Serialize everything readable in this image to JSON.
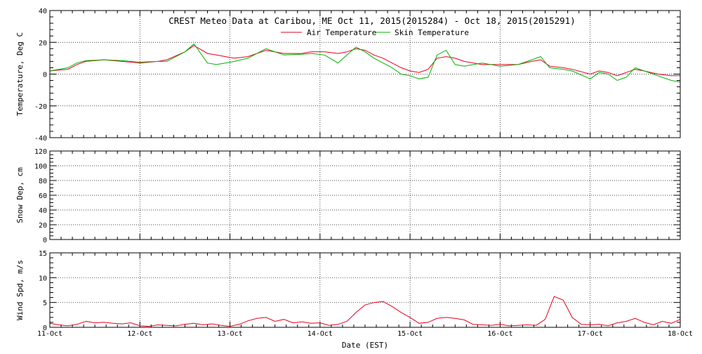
{
  "title": "CREST Meteo Data at Caribou, ME   Oct 11, 2015(2015284) - Oct 18, 2015(2015291)",
  "xlabel": "Date (EST)",
  "x_ticks": [
    "11-Oct",
    "12-Oct",
    "13-Oct",
    "14-Oct",
    "15-Oct",
    "16-Oct",
    "17-Oct",
    "18-Oct"
  ],
  "colors": {
    "air": "#e8001c",
    "skin": "#00b300",
    "wind": "#e8001c"
  },
  "chart_data": [
    {
      "type": "line",
      "ylabel": "Temperature, Deg C",
      "ylim": [
        -40,
        40
      ],
      "yticks": [
        -40,
        -20,
        0,
        20,
        40
      ],
      "xlim": [
        0,
        7
      ],
      "grid": true,
      "legend": "top-center",
      "series": [
        {
          "name": "Air Temperature",
          "color": "#e8001c",
          "x": [
            0,
            0.1,
            0.2,
            0.3,
            0.4,
            0.6,
            0.8,
            1.0,
            1.2,
            1.3,
            1.5,
            1.6,
            1.75,
            1.85,
            1.95,
            2.05,
            2.2,
            2.4,
            2.6,
            2.8,
            2.9,
            3.05,
            3.2,
            3.3,
            3.4,
            3.5,
            3.6,
            3.7,
            3.8,
            3.9,
            4.0,
            4.1,
            4.2,
            4.3,
            4.4,
            4.5,
            4.6,
            4.8,
            5.0,
            5.2,
            5.35,
            5.45,
            5.55,
            5.7,
            5.8,
            6.0,
            6.1,
            6.2,
            6.3,
            6.4,
            6.5,
            6.6,
            6.75,
            6.9,
            7.0
          ],
          "y": [
            2,
            2.5,
            3,
            6,
            8,
            9,
            8,
            7,
            8,
            9,
            14,
            18,
            13,
            12,
            11,
            10,
            11,
            15,
            13,
            13,
            14,
            14,
            13,
            14,
            16,
            15,
            12,
            10,
            7,
            4,
            2,
            1,
            3,
            10,
            11,
            10,
            8,
            6,
            6,
            6,
            8,
            9,
            5,
            4,
            3,
            0,
            2,
            1,
            -1,
            1,
            3,
            2,
            0,
            -1,
            -1
          ]
        },
        {
          "name": "Skin Temperature",
          "color": "#00b300",
          "x": [
            0,
            0.1,
            0.2,
            0.3,
            0.4,
            0.6,
            0.8,
            1.0,
            1.2,
            1.3,
            1.5,
            1.6,
            1.75,
            1.85,
            1.95,
            2.05,
            2.2,
            2.4,
            2.6,
            2.8,
            2.9,
            3.05,
            3.2,
            3.3,
            3.4,
            3.5,
            3.6,
            3.7,
            3.8,
            3.9,
            4.0,
            4.1,
            4.2,
            4.3,
            4.4,
            4.5,
            4.6,
            4.8,
            5.0,
            5.2,
            5.35,
            5.45,
            5.55,
            5.7,
            5.8,
            6.0,
            6.1,
            6.2,
            6.3,
            6.4,
            6.5,
            6.6,
            6.75,
            6.9,
            7.0
          ],
          "y": [
            2,
            3,
            4,
            7,
            8.5,
            9,
            8.5,
            7.5,
            8,
            8,
            14,
            19,
            7,
            6,
            7,
            8,
            10,
            16,
            12,
            12.5,
            13,
            12,
            7,
            12,
            17,
            14,
            10,
            7,
            4,
            0,
            -1,
            -3,
            -2,
            12,
            15,
            6,
            5,
            7,
            5,
            6,
            9,
            11,
            4,
            3,
            2,
            -3,
            1,
            0,
            -4,
            -2,
            4,
            2,
            -1,
            -4,
            -5
          ]
        }
      ]
    },
    {
      "type": "line",
      "ylabel": "Snow Dep, cm",
      "ylim": [
        0,
        120
      ],
      "yticks": [
        0,
        20,
        40,
        60,
        80,
        100,
        120
      ],
      "xlim": [
        0,
        7
      ],
      "grid": true,
      "series": []
    },
    {
      "type": "line",
      "ylabel": "Wind Spd, m/s",
      "ylim": [
        0,
        15
      ],
      "yticks": [
        0,
        5,
        10,
        15
      ],
      "xlim": [
        0,
        7
      ],
      "grid": true,
      "series": [
        {
          "color": "#e8001c",
          "x": [
            0,
            0.1,
            0.2,
            0.3,
            0.4,
            0.5,
            0.6,
            0.7,
            0.8,
            0.9,
            1.0,
            1.1,
            1.2,
            1.3,
            1.4,
            1.5,
            1.6,
            1.7,
            1.8,
            1.9,
            2.0,
            2.1,
            2.2,
            2.3,
            2.4,
            2.5,
            2.6,
            2.7,
            2.8,
            2.9,
            3.0,
            3.1,
            3.2,
            3.3,
            3.4,
            3.5,
            3.6,
            3.7,
            3.8,
            3.9,
            4.0,
            4.1,
            4.2,
            4.3,
            4.4,
            4.5,
            4.6,
            4.7,
            4.8,
            4.9,
            5.0,
            5.1,
            5.2,
            5.3,
            5.4,
            5.5,
            5.6,
            5.7,
            5.8,
            5.9,
            6.0,
            6.1,
            6.2,
            6.3,
            6.4,
            6.5,
            6.6,
            6.7,
            6.8,
            6.9,
            7.0
          ],
          "y": [
            0.8,
            0.5,
            0.3,
            0.6,
            1.2,
            0.9,
            1.0,
            0.8,
            0.7,
            0.9,
            0.3,
            0.2,
            0.5,
            0.4,
            0.3,
            0.6,
            0.8,
            0.5,
            0.7,
            0.4,
            0.2,
            0.6,
            1.3,
            1.8,
            2.0,
            1.2,
            1.6,
            0.9,
            1.1,
            0.8,
            0.9,
            0.4,
            0.6,
            1.2,
            3.0,
            4.5,
            5.0,
            5.2,
            4.2,
            3.0,
            2.0,
            0.8,
            1.0,
            1.8,
            2.0,
            1.8,
            1.5,
            0.6,
            0.5,
            0.4,
            0.6,
            0.3,
            0.4,
            0.5,
            0.4,
            1.6,
            6.2,
            5.5,
            2.0,
            0.6,
            0.5,
            0.6,
            0.3,
            0.9,
            1.2,
            1.8,
            1.0,
            0.5,
            1.2,
            0.8,
            1.6
          ]
        }
      ]
    }
  ]
}
